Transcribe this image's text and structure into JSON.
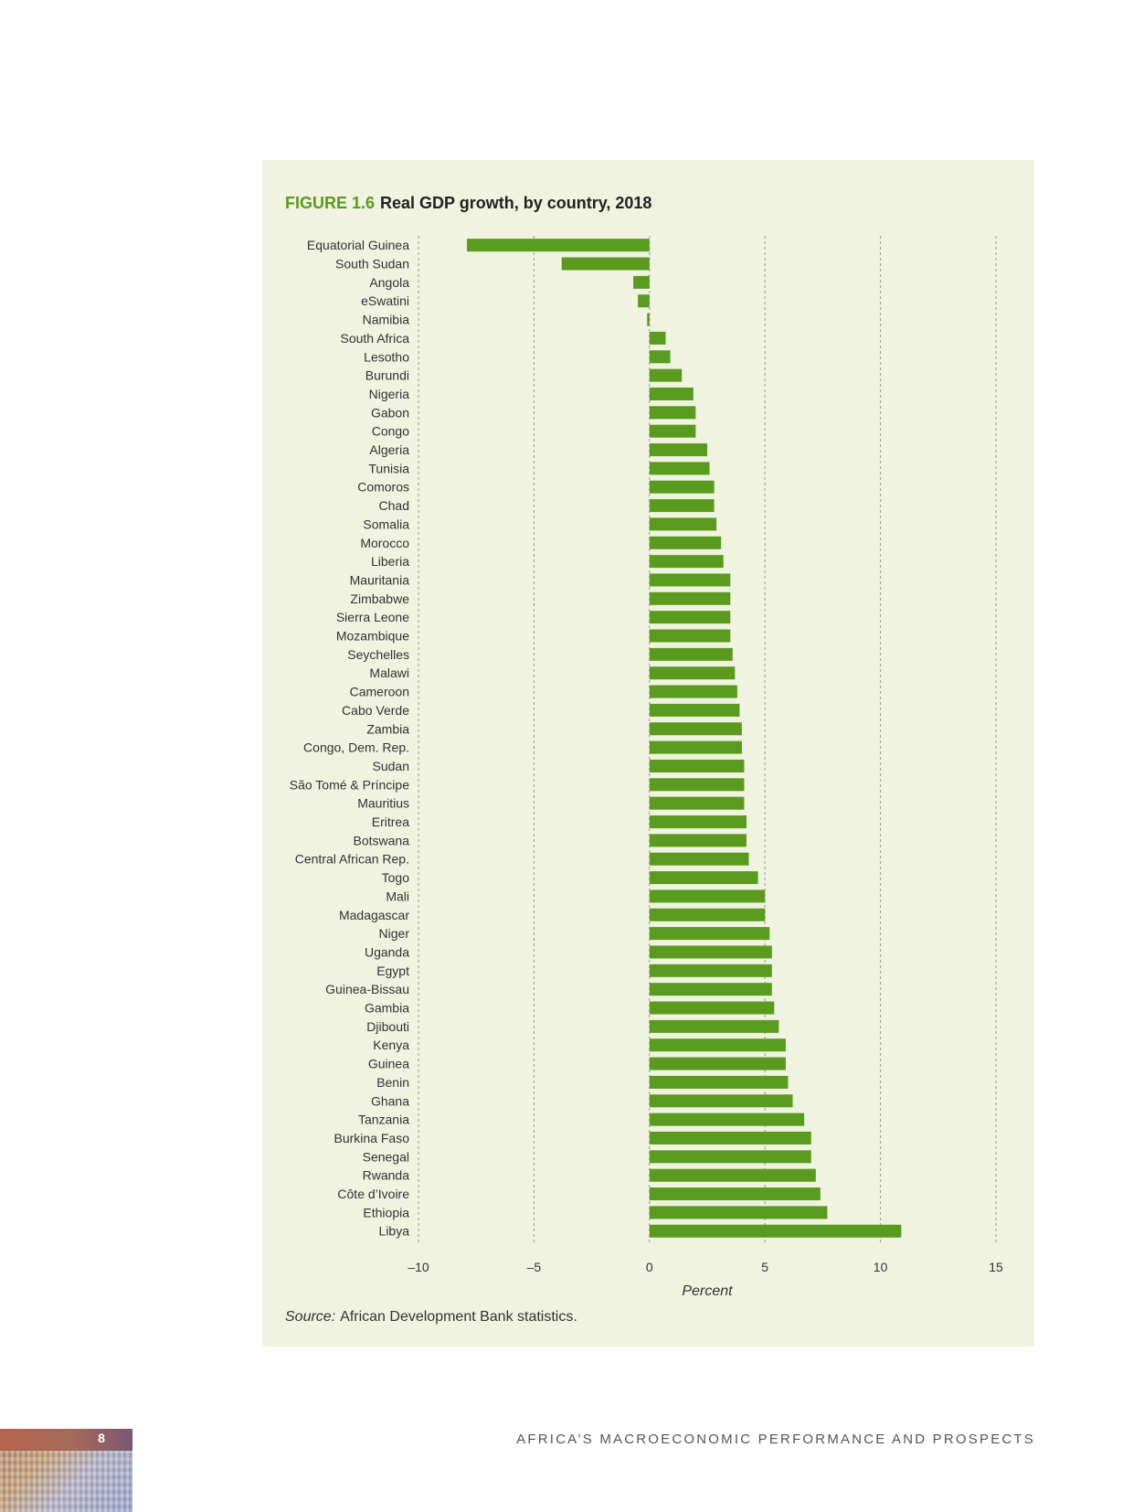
{
  "figure": {
    "label": "FIGURE 1.6",
    "title": "Real GDP growth, by country, 2018"
  },
  "source": {
    "label": "Source:",
    "text": "African Development Bank statistics."
  },
  "footer": {
    "running_title": "AFRICA’S MACROECONOMIC PERFORMANCE AND PROSPECTS",
    "page_number": "8"
  },
  "colors": {
    "bar": "#5a9a1e",
    "panel_background": "#eff3e0",
    "grid": "#9a9a9a"
  },
  "chart_data": {
    "type": "bar",
    "orientation": "horizontal",
    "categories": [
      "Equatorial Guinea",
      "South Sudan",
      "Angola",
      "eSwatini",
      "Namibia",
      "South Africa",
      "Lesotho",
      "Burundi",
      "Nigeria",
      "Gabon",
      "Congo",
      "Algeria",
      "Tunisia",
      "Comoros",
      "Chad",
      "Somalia",
      "Morocco",
      "Liberia",
      "Mauritania",
      "Zimbabwe",
      "Sierra Leone",
      "Mozambique",
      "Seychelles",
      "Malawi",
      "Cameroon",
      "Cabo Verde",
      "Zambia",
      "Congo, Dem. Rep.",
      "Sudan",
      "São Tomé & Príncipe",
      "Mauritius",
      "Eritrea",
      "Botswana",
      "Central African Rep.",
      "Togo",
      "Mali",
      "Madagascar",
      "Niger",
      "Uganda",
      "Egypt",
      "Guinea-Bissau",
      "Gambia",
      "Djibouti",
      "Kenya",
      "Guinea",
      "Benin",
      "Ghana",
      "Tanzania",
      "Burkina Faso",
      "Senegal",
      "Rwanda",
      "Côte d’Ivoire",
      "Ethiopia",
      "Libya"
    ],
    "values": [
      -7.9,
      -3.8,
      -0.7,
      -0.5,
      -0.1,
      0.7,
      0.9,
      1.4,
      1.9,
      2.0,
      2.0,
      2.5,
      2.6,
      2.8,
      2.8,
      2.9,
      3.1,
      3.2,
      3.5,
      3.5,
      3.5,
      3.5,
      3.6,
      3.7,
      3.8,
      3.9,
      4.0,
      4.0,
      4.1,
      4.1,
      4.1,
      4.2,
      4.2,
      4.3,
      4.7,
      5.0,
      5.0,
      5.2,
      5.3,
      5.3,
      5.3,
      5.4,
      5.6,
      5.9,
      5.9,
      6.0,
      6.2,
      6.7,
      7.0,
      7.0,
      7.2,
      7.4,
      7.7,
      10.9
    ],
    "xlabel": "Percent",
    "xlim": [
      -10,
      15
    ],
    "xticks": [
      -10,
      -5,
      0,
      5,
      10,
      15
    ],
    "xtick_labels": [
      "–10",
      "–5",
      "0",
      "5",
      "10",
      "15"
    ],
    "grid": "vertical dashed"
  }
}
